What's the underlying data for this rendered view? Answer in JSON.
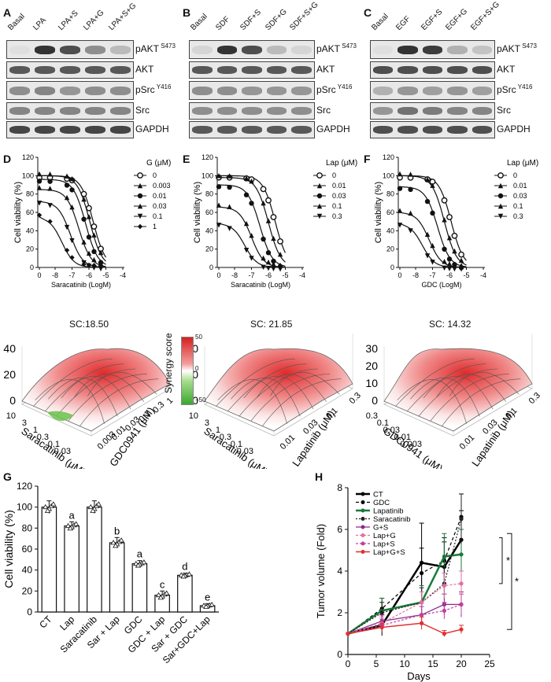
{
  "panels": {
    "A": {
      "letter": "A",
      "lanes": [
        "Basal",
        "LPA",
        "LPA+S",
        "LPA+G",
        "LPA+S+G"
      ]
    },
    "B": {
      "letter": "B",
      "lanes": [
        "Basal",
        "SDF",
        "SDF+S",
        "SDF+G",
        "SDF+S+G"
      ]
    },
    "C": {
      "letter": "C",
      "lanes": [
        "Basal",
        "EGF",
        "EGF+S",
        "EGF+G",
        "EGF+S+G"
      ]
    },
    "D": {
      "letter": "D"
    },
    "E": {
      "letter": "E"
    },
    "F": {
      "letter": "F"
    },
    "G": {
      "letter": "G"
    },
    "H": {
      "letter": "H"
    }
  },
  "blots": [
    {
      "name": "pAKT",
      "sup": "S473"
    },
    {
      "name": "AKT",
      "sup": ""
    },
    {
      "name": "pSrc",
      "sup": "Y416"
    },
    {
      "name": "Src",
      "sup": ""
    },
    {
      "name": "GAPDH",
      "sup": ""
    }
  ],
  "blot_intensity": {
    "A": [
      [
        0.05,
        1,
        0.85,
        0.5,
        0.25
      ],
      [
        0.8,
        0.8,
        0.8,
        0.8,
        0.8
      ],
      [
        0.5,
        0.55,
        0.45,
        0.5,
        0.5
      ],
      [
        0.55,
        0.55,
        0.55,
        0.55,
        0.55
      ],
      [
        0.9,
        0.9,
        0.9,
        0.9,
        0.9
      ]
    ],
    "B": [
      [
        0.1,
        1,
        0.85,
        0.25,
        0.1
      ],
      [
        0.8,
        0.8,
        0.8,
        0.8,
        0.8
      ],
      [
        0.5,
        0.5,
        0.45,
        0.45,
        0.45
      ],
      [
        0.5,
        0.5,
        0.5,
        0.5,
        0.5
      ],
      [
        0.8,
        0.8,
        0.8,
        0.8,
        0.8
      ]
    ],
    "C": [
      [
        0.05,
        1,
        0.95,
        0.3,
        0.2
      ],
      [
        0.85,
        0.85,
        0.85,
        0.85,
        0.85
      ],
      [
        0.3,
        0.45,
        0.4,
        0.45,
        0.4
      ],
      [
        0.45,
        0.65,
        0.6,
        0.55,
        0.55
      ],
      [
        0.85,
        0.85,
        0.85,
        0.85,
        0.85
      ]
    ]
  },
  "dose_curves": {
    "D": {
      "ylabel": "Cell viability (%)",
      "xlabel": "Saracatinib (LogM)",
      "legend_title": "G  (μM)",
      "legend": [
        "0",
        "0.003",
        "0.01",
        "0.03",
        "0.1",
        "1"
      ],
      "xticks": [
        "0",
        "-8",
        "-7",
        "-6",
        "-5",
        "-4"
      ],
      "yticks": [
        "0",
        "20",
        "40",
        "60",
        "80",
        "100",
        "120"
      ],
      "ec50": [
        -5.75,
        -5.95,
        -6.2,
        -6.6,
        -7.1,
        -7.6
      ],
      "top": [
        100,
        100,
        96,
        85,
        72,
        55
      ]
    },
    "E": {
      "ylabel": "Cell viability (%)",
      "xlabel": "Saracatinib (LogM)",
      "legend_title": "Lap (μM)",
      "legend": [
        "0",
        "0.01",
        "0.03",
        "0.1",
        "0.3"
      ],
      "xticks": [
        "0",
        "-8",
        "-7",
        "-6",
        "-5",
        "-4"
      ],
      "yticks": [
        "0",
        "20",
        "40",
        "60",
        "80",
        "100",
        "120"
      ],
      "ec50": [
        -5.6,
        -6.0,
        -6.5,
        -7.0,
        -7.4
      ],
      "top": [
        100,
        98,
        90,
        66,
        48
      ]
    },
    "F": {
      "ylabel": "Cell viability (%)",
      "xlabel": "GDC (LogM)",
      "legend_title": "Lap (μM)",
      "legend": [
        "0",
        "0.01",
        "0.03",
        "0.1",
        "0.3"
      ],
      "xticks": [
        "0",
        "-8",
        "-7",
        "-6",
        "-5",
        "-4"
      ],
      "yticks": [
        "0",
        "20",
        "40",
        "60",
        "80",
        "100",
        "120"
      ],
      "ec50": [
        -5.9,
        -6.3,
        -6.7,
        -7.2,
        -7.6
      ],
      "top": [
        100,
        100,
        88,
        60,
        48
      ]
    }
  },
  "synergy": {
    "D": {
      "title": "SC:18.50",
      "zticks": [
        "40",
        "20",
        "0"
      ],
      "left_ticks": [
        "10",
        "3",
        "1",
        "0.3",
        "0.1",
        "0.03"
      ],
      "right_ticks": [
        "0.003",
        "0.01",
        "0.03",
        "0.1",
        "0.3",
        "1"
      ],
      "left_label": "Saracatinib (μM)",
      "right_label": "GDC0941 (μM)"
    },
    "E": {
      "title": "SC: 21.85",
      "zticks": [
        "40",
        "20",
        "0"
      ],
      "left_ticks": [
        "10",
        "3",
        "1",
        "0.3",
        "0.1",
        "0.03"
      ],
      "right_ticks": [
        "0.01",
        "0.03",
        "0.1",
        "0.3"
      ],
      "left_label": "Saracatinib (μM)",
      "right_label": "Lapatinib (μM)"
    },
    "F": {
      "title": "SC: 14.32",
      "zticks": [
        "30",
        "20",
        "10",
        "0"
      ],
      "left_ticks": [
        "0.3",
        "0.1",
        "0.03",
        "0.01",
        "0.003"
      ],
      "right_ticks": [
        "0.01",
        "0.03",
        "0.1",
        "0.3"
      ],
      "left_label": "GDC0941 (μM)",
      "right_label": "Lapatinib (μM)"
    },
    "colorbar": {
      "label": "Synergy score",
      "max": "50",
      "mid": "0",
      "min": "−50"
    }
  },
  "chart_data": [
    {
      "type": "bar",
      "ylabel": "Cell viability (%)",
      "ylim": [
        0,
        120
      ],
      "yticks": [
        "0",
        "20",
        "40",
        "60",
        "80",
        "100",
        "120"
      ],
      "categories": [
        "CT",
        "Lap",
        "Saracatinib",
        "Sar + Lap",
        "GDC",
        "GDC + Lap",
        "Sar + GDC",
        "Sar+GDC+Lap"
      ],
      "values": [
        100,
        82,
        100,
        66,
        46,
        16,
        35,
        6
      ],
      "errors": [
        6,
        4,
        6,
        5,
        3,
        4,
        2,
        2
      ],
      "letters": [
        "",
        "a",
        "",
        "b",
        "a",
        "c",
        "d",
        "e"
      ]
    },
    {
      "type": "line",
      "ylabel": "Tumor volume (Fold)",
      "xlabel": "Days",
      "ylim": [
        0,
        8
      ],
      "xlim": [
        0,
        25
      ],
      "yticks": [
        "0",
        "2",
        "4",
        "6",
        "8"
      ],
      "xticks": [
        "0",
        "5",
        "10",
        "15",
        "20",
        "25"
      ],
      "x": [
        0,
        6,
        13,
        17,
        20
      ],
      "series": [
        {
          "name": "CT",
          "color": "#000000",
          "dash": "",
          "width": 2.5,
          "values": [
            1,
            1.4,
            4.4,
            4.2,
            5.5
          ],
          "err": [
            0,
            0.5,
            1.9,
            1.2,
            1.4
          ]
        },
        {
          "name": "GDC",
          "color": "#000000",
          "dash": "4,3",
          "width": 1.2,
          "values": [
            1,
            2.2,
            3.9,
            4.5,
            6.6
          ],
          "err": [
            0,
            0.5,
            1.2,
            1.1,
            1.1
          ]
        },
        {
          "name": "Lapatinib",
          "color": "#1a7a3a",
          "dash": "",
          "width": 2.5,
          "values": [
            1,
            2.1,
            2.5,
            4.7,
            4.8
          ],
          "err": [
            0,
            0.6,
            0.8,
            1.1,
            1.2
          ]
        },
        {
          "name": "Saracatinib",
          "color": "#222222",
          "dash": "2,2",
          "width": 1.2,
          "values": [
            1,
            2.0,
            2.5,
            3.4,
            6.5
          ],
          "err": [
            0,
            0.5,
            0.7,
            0.8,
            1.2
          ]
        },
        {
          "name": "G+S",
          "color": "#8a2a8a",
          "dash": "",
          "width": 1.2,
          "values": [
            1,
            1.6,
            1.9,
            2.4,
            2.4
          ],
          "err": [
            0,
            0.3,
            0.4,
            0.5,
            0.6
          ]
        },
        {
          "name": "Lap+G",
          "color": "#e070a0",
          "dash": "3,2",
          "width": 1.2,
          "values": [
            1,
            1.5,
            2.5,
            3.3,
            3.4
          ],
          "err": [
            0,
            0.3,
            0.5,
            0.6,
            0.6
          ]
        },
        {
          "name": "Lap+S",
          "color": "#c040a0",
          "dash": "3,2",
          "width": 1.2,
          "values": [
            1,
            1.4,
            1.9,
            2.1,
            2.4
          ],
          "err": [
            0,
            0.3,
            0.4,
            0.4,
            0.5
          ]
        },
        {
          "name": "Lap+G+S",
          "color": "#e03030",
          "dash": "",
          "width": 1.5,
          "values": [
            1,
            1.3,
            1.5,
            1.0,
            1.2
          ],
          "err": [
            0,
            0.2,
            0.3,
            0.15,
            0.2
          ]
        }
      ],
      "sig": [
        "*",
        "*"
      ]
    }
  ]
}
